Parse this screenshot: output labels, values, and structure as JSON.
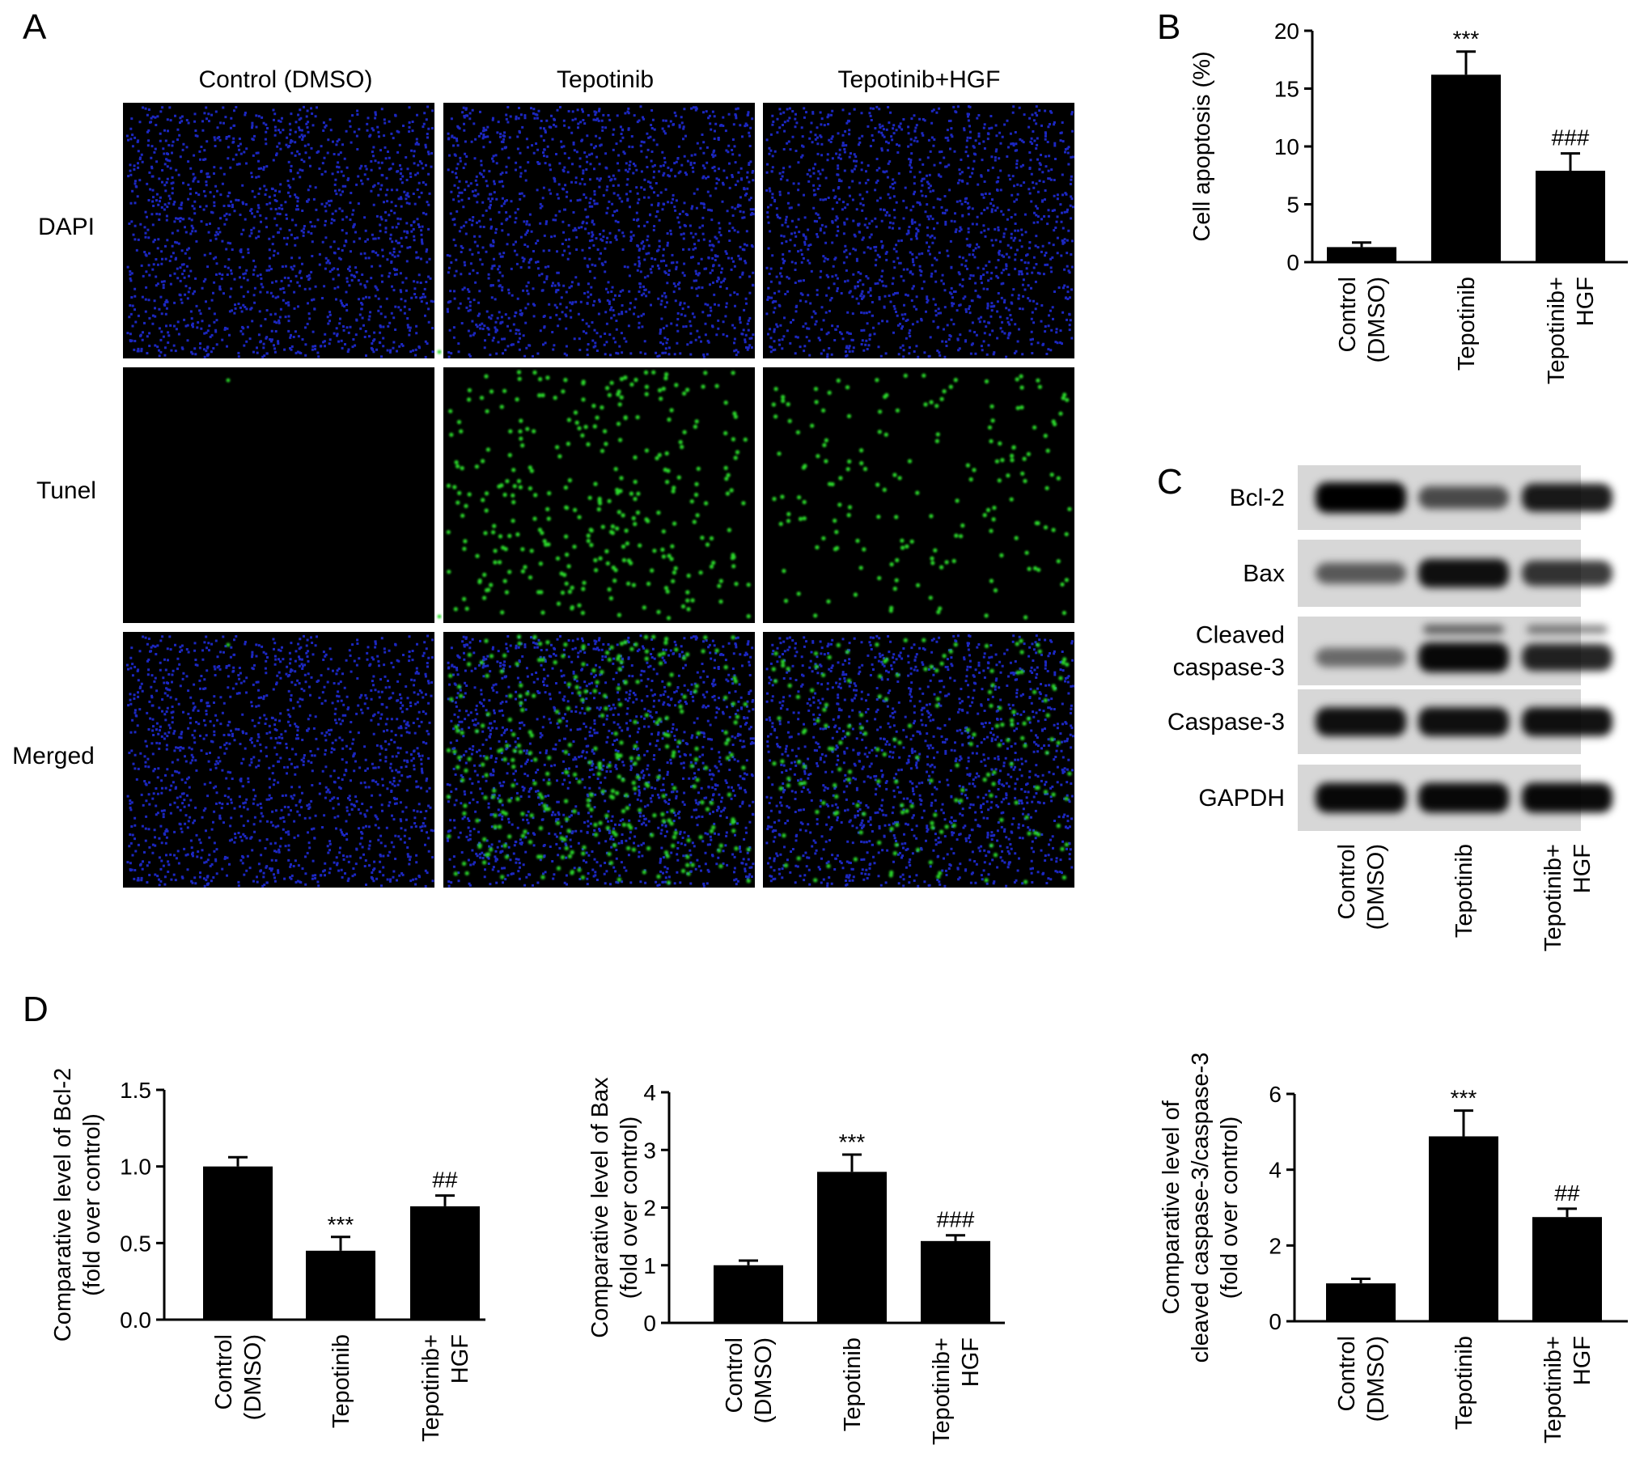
{
  "panel_letters": [
    "A",
    "B",
    "C",
    "D"
  ],
  "panel_a": {
    "columns": [
      "Control (DMSO)",
      "Tepotinib",
      "Tepotinib+HGF"
    ],
    "rows": [
      "DAPI",
      "Tunel",
      "Merged"
    ],
    "tunel_positive_density": [
      0.0,
      1.0,
      0.55
    ],
    "colors": {
      "dapi": "#1f2bd6",
      "tunel": "#2bd92b",
      "background": "#000000"
    }
  },
  "panel_c": {
    "blot_labels": [
      [
        "Bcl-2"
      ],
      [
        "Bax"
      ],
      [
        "Cleaved",
        "caspase-3"
      ],
      [
        "Caspase-3"
      ],
      [
        "GAPDH"
      ]
    ],
    "lane_labels": [
      [
        "Control",
        "(DMSO)"
      ],
      [
        "Tepotinib"
      ],
      [
        "Tepotinib+",
        "HGF"
      ]
    ],
    "band_intensity": [
      [
        1.0,
        0.55,
        0.85
      ],
      [
        0.45,
        0.9,
        0.7
      ],
      [
        0.35,
        0.95,
        0.8
      ],
      [
        0.9,
        0.9,
        0.9
      ],
      [
        0.95,
        0.95,
        0.95
      ]
    ]
  },
  "chart_data": [
    {
      "id": "B",
      "type": "bar",
      "categories": [
        [
          "Control",
          "(DMSO)"
        ],
        [
          "Tepotinib"
        ],
        [
          "Tepotinib+",
          "HGF"
        ]
      ],
      "values": [
        1.3,
        16.2,
        7.9
      ],
      "errors": [
        0.4,
        2.0,
        1.5
      ],
      "annotations": [
        "",
        "***",
        "###"
      ],
      "ylabel": [
        "Cell apoptosis (%)"
      ],
      "ylim": [
        0,
        20
      ],
      "yticks": [
        0,
        5,
        10,
        15,
        20
      ],
      "ytick_labels": [
        "0",
        "5",
        "10",
        "15",
        "20"
      ]
    },
    {
      "id": "D1",
      "type": "bar",
      "categories": [
        [
          "Control",
          "(DMSO)"
        ],
        [
          "Tepotinib"
        ],
        [
          "Tepotinib+",
          "HGF"
        ]
      ],
      "values": [
        1.0,
        0.45,
        0.74
      ],
      "errors": [
        0.06,
        0.09,
        0.07
      ],
      "annotations": [
        "",
        "***",
        "##"
      ],
      "ylabel": [
        "Comparative level of Bcl-2",
        "(fold over control)"
      ],
      "ylim": [
        0,
        1.5
      ],
      "yticks": [
        0,
        0.5,
        1.0,
        1.5
      ],
      "ytick_labels": [
        "0.0",
        "0.5",
        "1.0",
        "1.5"
      ]
    },
    {
      "id": "D2",
      "type": "bar",
      "categories": [
        [
          "Control",
          "(DMSO)"
        ],
        [
          "Tepotinib"
        ],
        [
          "Tepotinib+",
          "HGF"
        ]
      ],
      "values": [
        1.0,
        2.62,
        1.42
      ],
      "errors": [
        0.08,
        0.3,
        0.1
      ],
      "annotations": [
        "",
        "***",
        "###"
      ],
      "ylabel": [
        "Comparative level of Bax",
        "(fold over control)"
      ],
      "ylim": [
        0,
        4
      ],
      "yticks": [
        0,
        1,
        2,
        3,
        4
      ],
      "ytick_labels": [
        "0",
        "1",
        "2",
        "3",
        "4"
      ]
    },
    {
      "id": "D3",
      "type": "bar",
      "categories": [
        [
          "Control",
          "(DMSO)"
        ],
        [
          "Tepotinib"
        ],
        [
          "Tepotinib+",
          "HGF"
        ]
      ],
      "values": [
        1.0,
        4.88,
        2.75
      ],
      "errors": [
        0.12,
        0.68,
        0.22
      ],
      "annotations": [
        "",
        "***",
        "##"
      ],
      "ylabel": [
        "Comparative level of",
        "cleaved caspase-3/caspase-3",
        "(fold over control)"
      ],
      "ylim": [
        0,
        6
      ],
      "yticks": [
        0,
        2,
        4,
        6
      ],
      "ytick_labels": [
        "0",
        "2",
        "4",
        "6"
      ]
    }
  ]
}
